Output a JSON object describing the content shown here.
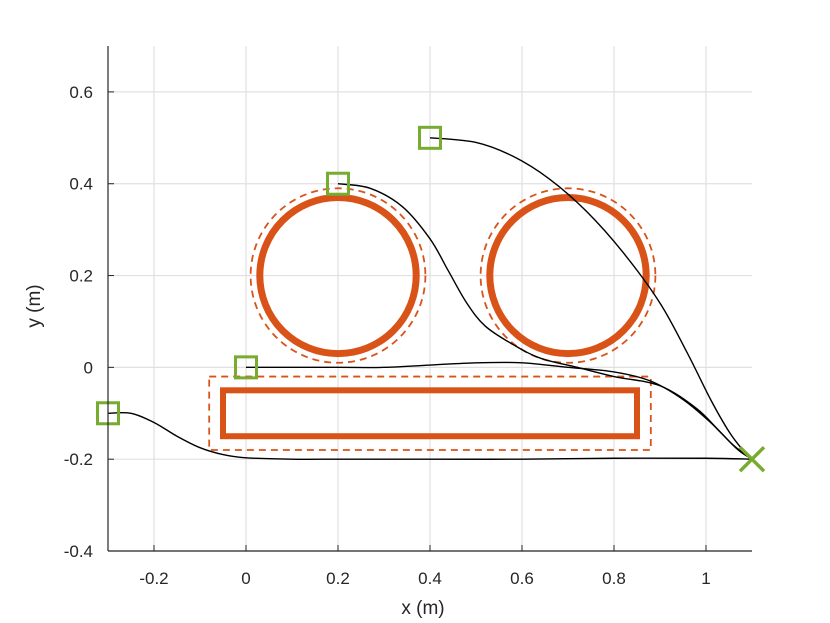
{
  "chart_data": {
    "type": "line",
    "title": "",
    "xlabel": "x (m)",
    "ylabel": "y (m)",
    "xlim": [
      -0.3,
      1.1
    ],
    "ylim": [
      -0.4,
      0.7
    ],
    "x_ticks": [
      -0.2,
      0,
      0.2,
      0.4,
      0.6,
      0.8,
      1
    ],
    "x_tick_labels": [
      "-0.2",
      "0",
      "0.2",
      "0.4",
      "0.6",
      "0.8",
      "1"
    ],
    "y_ticks": [
      -0.4,
      -0.2,
      0,
      0.2,
      0.4,
      0.6
    ],
    "y_tick_labels": [
      "-0.4",
      "-0.2",
      "0",
      "0.2",
      "0.4",
      "0.6"
    ],
    "grid": true,
    "colors": {
      "obstacle": "#d95319",
      "marker": "#77ac30",
      "path": "#000000",
      "grid": "#e0e0e0"
    },
    "obstacles": {
      "circles": [
        {
          "center": [
            0.2,
            0.2
          ],
          "radius": 0.17,
          "margin_radius": 0.19
        },
        {
          "center": [
            0.7,
            0.2
          ],
          "radius": 0.17,
          "margin_radius": 0.19
        }
      ],
      "rectangles": [
        {
          "x_range": [
            -0.05,
            0.85
          ],
          "y_range": [
            -0.15,
            -0.05
          ],
          "margin_x_range": [
            -0.08,
            0.88
          ],
          "margin_y_range": [
            -0.18,
            -0.02
          ]
        }
      ]
    },
    "start_points": [
      {
        "x": 0.4,
        "y": 0.5
      },
      {
        "x": 0.2,
        "y": 0.4
      },
      {
        "x": 0.0,
        "y": 0.0
      },
      {
        "x": -0.3,
        "y": -0.1
      }
    ],
    "goal_point": {
      "x": 1.1,
      "y": -0.2
    },
    "series": [
      {
        "x": [
          0.4,
          0.5,
          0.58,
          0.66,
          0.74,
          0.82,
          0.9,
          0.96,
          1.01,
          1.05,
          1.08,
          1.1
        ],
        "y": [
          0.5,
          0.49,
          0.46,
          0.41,
          0.34,
          0.25,
          0.14,
          0.03,
          -0.07,
          -0.14,
          -0.18,
          -0.2
        ]
      },
      {
        "x": [
          0.2,
          0.27,
          0.34,
          0.4,
          0.44,
          0.48,
          0.52,
          0.58,
          0.64,
          0.72,
          0.8,
          0.9,
          0.98,
          1.03,
          1.07,
          1.1
        ],
        "y": [
          0.4,
          0.39,
          0.35,
          0.28,
          0.21,
          0.14,
          0.09,
          0.05,
          0.02,
          0.0,
          -0.02,
          -0.04,
          -0.09,
          -0.14,
          -0.18,
          -0.2
        ]
      },
      {
        "x": [
          0.0,
          0.1,
          0.2,
          0.3,
          0.4,
          0.5,
          0.6,
          0.7,
          0.8,
          0.88,
          0.95,
          1.01,
          1.06,
          1.1
        ],
        "y": [
          0.0,
          0.0,
          0.0,
          0.0,
          0.005,
          0.01,
          0.01,
          0.0,
          -0.01,
          -0.03,
          -0.07,
          -0.12,
          -0.17,
          -0.2
        ]
      },
      {
        "x": [
          -0.3,
          -0.25,
          -0.2,
          -0.15,
          -0.1,
          -0.05,
          0.0,
          0.1,
          0.2,
          0.3,
          0.4,
          0.6,
          0.8,
          1.0,
          1.1
        ],
        "y": [
          -0.1,
          -0.1,
          -0.12,
          -0.15,
          -0.175,
          -0.19,
          -0.197,
          -0.2,
          -0.2,
          -0.2,
          -0.2,
          -0.2,
          -0.198,
          -0.198,
          -0.2
        ]
      }
    ]
  }
}
